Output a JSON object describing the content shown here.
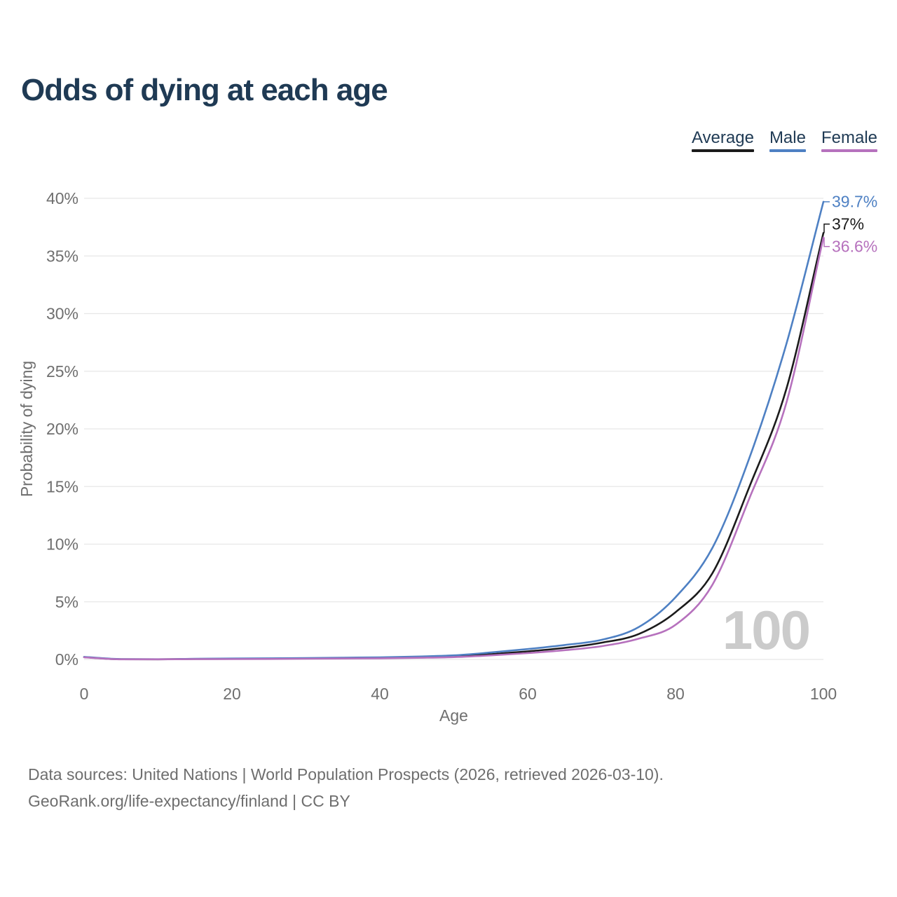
{
  "header": {
    "title": "Odds of dying at each age"
  },
  "footer": {
    "line1": "Data sources: United Nations | World Population Prospects (2026, retrieved 2026-03-10).",
    "line2": "GeoRank.org/life-expectancy/finland | CC BY"
  },
  "colors": {
    "title_text": "#1f3a54",
    "axis_text": "#6f6f6f",
    "grid": "#e7e7e7",
    "watermark": "#cbcbcb",
    "footer_text": "#6e6e6e",
    "background": "#ffffff"
  },
  "chart_data": {
    "type": "line",
    "title": "Odds of dying at each age",
    "xlabel": "Age",
    "ylabel": "Probability of dying",
    "xlim": [
      0,
      100
    ],
    "ylim": [
      0,
      40
    ],
    "x_ticks": [
      0,
      20,
      40,
      60,
      80,
      100
    ],
    "y_ticks_pct": [
      0,
      5,
      10,
      15,
      20,
      25,
      30,
      35,
      40
    ],
    "grid": true,
    "legend_position": "top-right",
    "watermark": "100",
    "x": [
      0,
      5,
      10,
      15,
      20,
      25,
      30,
      35,
      40,
      45,
      50,
      55,
      60,
      65,
      70,
      75,
      80,
      85,
      90,
      95,
      100
    ],
    "series": [
      {
        "name": "Average",
        "color": "#1b1b1b",
        "end_label": "37%",
        "values": [
          0.2,
          0.02,
          0.015,
          0.04,
          0.05,
          0.07,
          0.09,
          0.11,
          0.14,
          0.19,
          0.28,
          0.45,
          0.7,
          1.0,
          1.45,
          2.2,
          4.1,
          7.5,
          15.0,
          23.5,
          37.0
        ]
      },
      {
        "name": "Male",
        "color": "#4e80c3",
        "end_label": "39.7%",
        "values": [
          0.22,
          0.03,
          0.02,
          0.06,
          0.08,
          0.1,
          0.12,
          0.15,
          0.18,
          0.25,
          0.35,
          0.6,
          0.9,
          1.25,
          1.7,
          2.8,
          5.4,
          9.7,
          17.5,
          27.4,
          39.7
        ]
      },
      {
        "name": "Female",
        "color": "#b671bd",
        "end_label": "36.6%",
        "values": [
          0.18,
          0.015,
          0.01,
          0.025,
          0.03,
          0.04,
          0.06,
          0.08,
          0.1,
          0.14,
          0.2,
          0.35,
          0.55,
          0.8,
          1.15,
          1.8,
          3.0,
          6.5,
          14.0,
          22.3,
          36.6
        ]
      }
    ]
  }
}
